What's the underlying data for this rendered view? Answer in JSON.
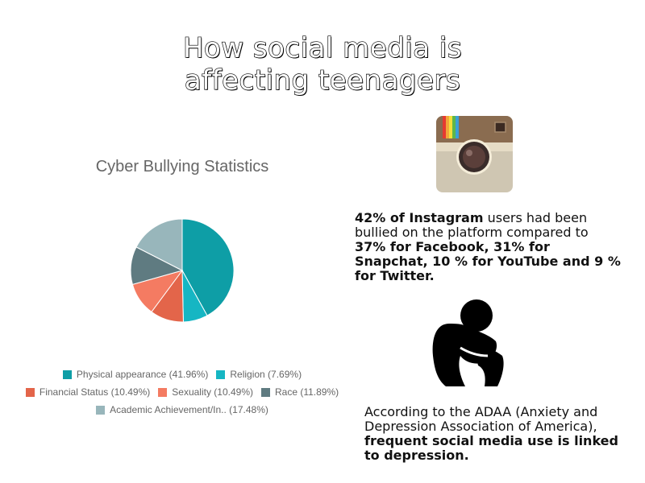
{
  "page": {
    "title_line1": "How social media is",
    "title_line2": "affecting teenagers"
  },
  "chart_data": {
    "type": "pie",
    "title": "Cyber Bullying Statistics",
    "slices": [
      {
        "label": "Physical appearance (41.96%)",
        "value": 41.96,
        "color": "#0e9ea6"
      },
      {
        "label": "Religion (7.69%)",
        "value": 7.69,
        "color": "#16b6c3"
      },
      {
        "label": "Financial Status (10.49%)",
        "value": 10.49,
        "color": "#e3654a"
      },
      {
        "label": "Sexuality (10.49%)",
        "value": 10.49,
        "color": "#f47b62"
      },
      {
        "label": "Race (11.89%)",
        "value": 11.89,
        "color": "#5f7b81"
      },
      {
        "label": "Academic Achievement/In.. (17.48%)",
        "value": 17.48,
        "color": "#98b6bb"
      }
    ],
    "legend_position": "bottom"
  },
  "instagram_stat": {
    "part1": "42% of Instagram",
    "part2": " users had been bullied on the platform compared to ",
    "part3": "37% for Facebook, 31% for Snapchat, 10 % for YouTube and 9 % for Twitter."
  },
  "adaa_stat": {
    "part1": "According to the ADAA (Anxiety and Depression Association of America), ",
    "part2": "frequent social media use is linked to depression."
  },
  "icons": {
    "instagram": "instagram-camera-icon",
    "person": "sad-person-icon"
  }
}
